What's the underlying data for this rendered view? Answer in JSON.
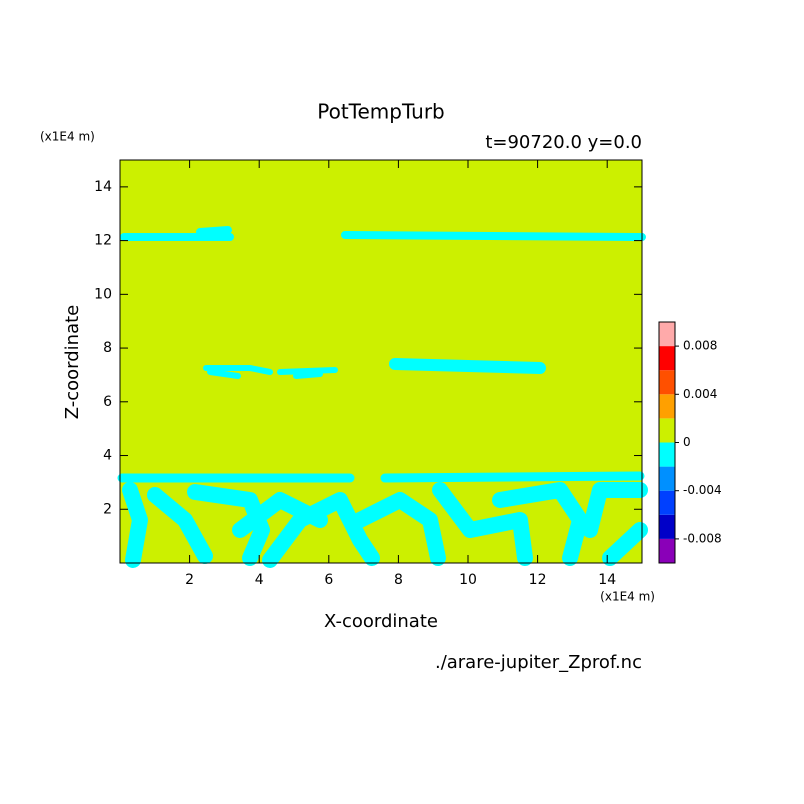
{
  "chart_data": {
    "type": "contour",
    "title": "PotTempTurb",
    "subtitle": "t=90720.0 y=0.0",
    "xlabel": "X-coordinate",
    "ylabel": "Z-coordinate",
    "x_unit": "(x1E4 m)",
    "y_unit": "(x1E4 m)",
    "source": "./arare-jupiter_Zprof.nc",
    "xlim": [
      0,
      15
    ],
    "xticks": [
      2,
      4,
      6,
      8,
      10,
      12,
      14
    ],
    "ylim": [
      0,
      15
    ],
    "yticks": [
      2,
      4,
      6,
      8,
      10,
      12,
      14
    ],
    "colorbar": {
      "levels": [
        -0.01,
        -0.008,
        -0.006,
        -0.004,
        -0.002,
        0,
        0.002,
        0.004,
        0.006,
        0.008,
        0.01
      ],
      "colors": [
        "#8a00b8",
        "#0000c8",
        "#0040ff",
        "#0090ff",
        "#00ffff",
        "#ccf000",
        "#ffa000",
        "#ff5000",
        "#ff0000",
        "#ffaaaa"
      ],
      "ticks": [
        -0.008,
        -0.004,
        0,
        0.004,
        0.008
      ]
    }
  }
}
